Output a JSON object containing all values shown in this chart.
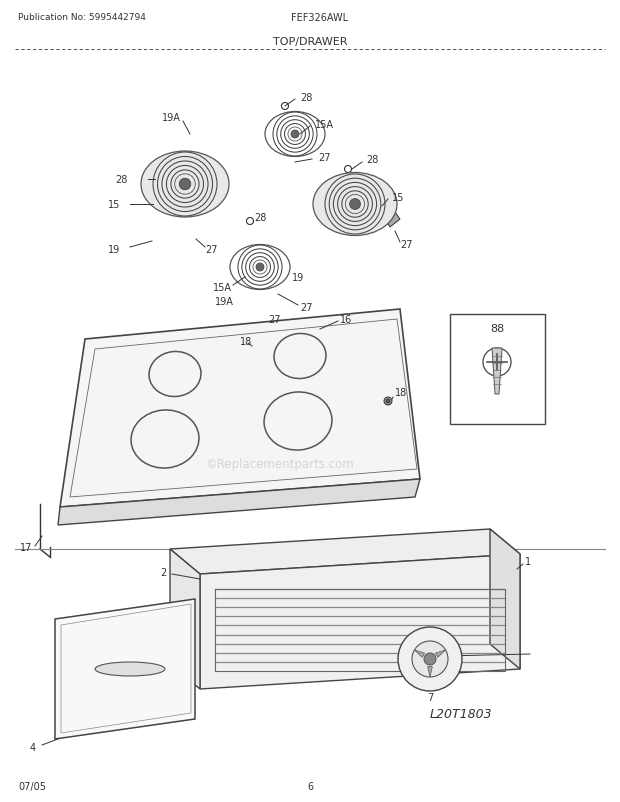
{
  "pub_no": "Publication No: 5995442794",
  "model": "FEF326AWL",
  "section": "TOP/DRAWER",
  "footer_date": "07/05",
  "footer_page": "6",
  "watermark": "©Replacementparts.com",
  "bg_color": "#ffffff",
  "line_color": "#333333",
  "text_color": "#333333"
}
